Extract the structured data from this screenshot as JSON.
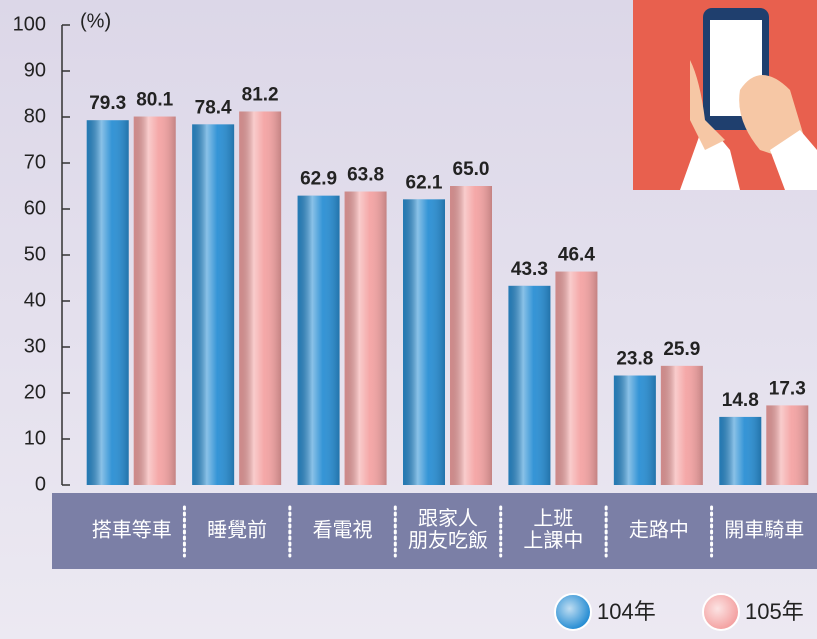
{
  "chart_data": {
    "type": "bar",
    "y_unit_label": "(%)",
    "categories": [
      "搭車等車",
      "睡覺前",
      "看電視",
      "跟家人\n朋友吃飯",
      "上班\n上課中",
      "走路中",
      "開車騎車"
    ],
    "series": [
      {
        "name": "104年",
        "color": "#2a8fd4",
        "values": [
          79.3,
          78.4,
          62.9,
          62.1,
          43.3,
          23.8,
          14.8
        ],
        "value_labels": [
          "79.3",
          "78.4",
          "62.9",
          "62.1",
          "43.3",
          "23.8",
          "14.8"
        ]
      },
      {
        "name": "105年",
        "color": "#f4a3a3",
        "values": [
          80.1,
          81.2,
          63.8,
          65,
          46.4,
          25.9,
          17.3
        ],
        "value_labels": [
          "80.1",
          "81.2",
          "63.8",
          "65.0",
          "46.4",
          "25.9",
          "17.3"
        ]
      }
    ],
    "ylim": [
      0,
      100
    ],
    "yticks": [
      0,
      10,
      20,
      30,
      40,
      50,
      60,
      70,
      80,
      90,
      100
    ]
  }
}
